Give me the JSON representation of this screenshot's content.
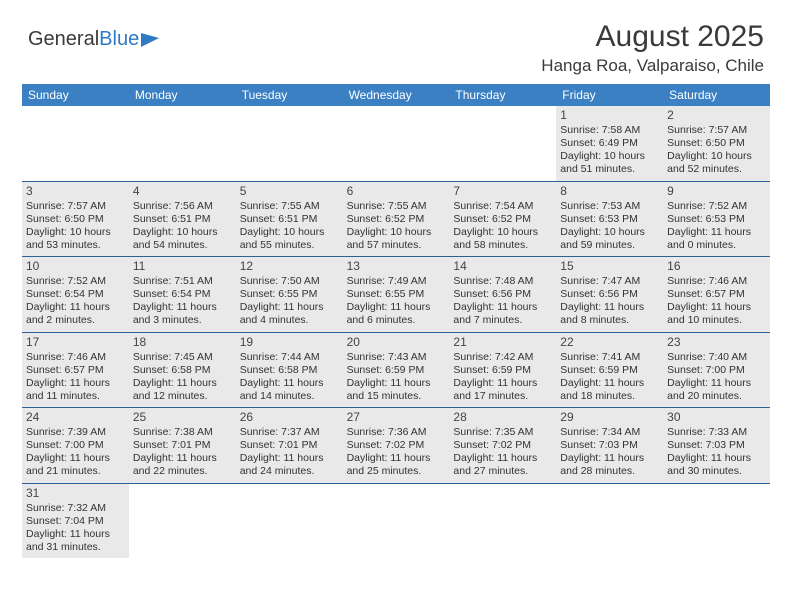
{
  "logo": {
    "text1": "General",
    "text2": "Blue"
  },
  "title": {
    "month": "August 2025",
    "location": "Hanga Roa, Valparaiso, Chile"
  },
  "dayHeaders": [
    "Sunday",
    "Monday",
    "Tuesday",
    "Wednesday",
    "Thursday",
    "Friday",
    "Saturday"
  ],
  "colors": {
    "header_bg": "#3a80c3",
    "border": "#2f5f99",
    "shaded": "#e9e9e9",
    "text": "#333333",
    "logo_blue": "#2f7ac4"
  },
  "weeks": [
    [
      null,
      null,
      null,
      null,
      null,
      {
        "d": "1",
        "sr": "Sunrise: 7:58 AM",
        "ss": "Sunset: 6:49 PM",
        "dl1": "Daylight: 10 hours",
        "dl2": "and 51 minutes."
      },
      {
        "d": "2",
        "sr": "Sunrise: 7:57 AM",
        "ss": "Sunset: 6:50 PM",
        "dl1": "Daylight: 10 hours",
        "dl2": "and 52 minutes."
      }
    ],
    [
      {
        "d": "3",
        "sr": "Sunrise: 7:57 AM",
        "ss": "Sunset: 6:50 PM",
        "dl1": "Daylight: 10 hours",
        "dl2": "and 53 minutes."
      },
      {
        "d": "4",
        "sr": "Sunrise: 7:56 AM",
        "ss": "Sunset: 6:51 PM",
        "dl1": "Daylight: 10 hours",
        "dl2": "and 54 minutes."
      },
      {
        "d": "5",
        "sr": "Sunrise: 7:55 AM",
        "ss": "Sunset: 6:51 PM",
        "dl1": "Daylight: 10 hours",
        "dl2": "and 55 minutes."
      },
      {
        "d": "6",
        "sr": "Sunrise: 7:55 AM",
        "ss": "Sunset: 6:52 PM",
        "dl1": "Daylight: 10 hours",
        "dl2": "and 57 minutes."
      },
      {
        "d": "7",
        "sr": "Sunrise: 7:54 AM",
        "ss": "Sunset: 6:52 PM",
        "dl1": "Daylight: 10 hours",
        "dl2": "and 58 minutes."
      },
      {
        "d": "8",
        "sr": "Sunrise: 7:53 AM",
        "ss": "Sunset: 6:53 PM",
        "dl1": "Daylight: 10 hours",
        "dl2": "and 59 minutes."
      },
      {
        "d": "9",
        "sr": "Sunrise: 7:52 AM",
        "ss": "Sunset: 6:53 PM",
        "dl1": "Daylight: 11 hours",
        "dl2": "and 0 minutes."
      }
    ],
    [
      {
        "d": "10",
        "sr": "Sunrise: 7:52 AM",
        "ss": "Sunset: 6:54 PM",
        "dl1": "Daylight: 11 hours",
        "dl2": "and 2 minutes."
      },
      {
        "d": "11",
        "sr": "Sunrise: 7:51 AM",
        "ss": "Sunset: 6:54 PM",
        "dl1": "Daylight: 11 hours",
        "dl2": "and 3 minutes."
      },
      {
        "d": "12",
        "sr": "Sunrise: 7:50 AM",
        "ss": "Sunset: 6:55 PM",
        "dl1": "Daylight: 11 hours",
        "dl2": "and 4 minutes."
      },
      {
        "d": "13",
        "sr": "Sunrise: 7:49 AM",
        "ss": "Sunset: 6:55 PM",
        "dl1": "Daylight: 11 hours",
        "dl2": "and 6 minutes."
      },
      {
        "d": "14",
        "sr": "Sunrise: 7:48 AM",
        "ss": "Sunset: 6:56 PM",
        "dl1": "Daylight: 11 hours",
        "dl2": "and 7 minutes."
      },
      {
        "d": "15",
        "sr": "Sunrise: 7:47 AM",
        "ss": "Sunset: 6:56 PM",
        "dl1": "Daylight: 11 hours",
        "dl2": "and 8 minutes."
      },
      {
        "d": "16",
        "sr": "Sunrise: 7:46 AM",
        "ss": "Sunset: 6:57 PM",
        "dl1": "Daylight: 11 hours",
        "dl2": "and 10 minutes."
      }
    ],
    [
      {
        "d": "17",
        "sr": "Sunrise: 7:46 AM",
        "ss": "Sunset: 6:57 PM",
        "dl1": "Daylight: 11 hours",
        "dl2": "and 11 minutes."
      },
      {
        "d": "18",
        "sr": "Sunrise: 7:45 AM",
        "ss": "Sunset: 6:58 PM",
        "dl1": "Daylight: 11 hours",
        "dl2": "and 12 minutes."
      },
      {
        "d": "19",
        "sr": "Sunrise: 7:44 AM",
        "ss": "Sunset: 6:58 PM",
        "dl1": "Daylight: 11 hours",
        "dl2": "and 14 minutes."
      },
      {
        "d": "20",
        "sr": "Sunrise: 7:43 AM",
        "ss": "Sunset: 6:59 PM",
        "dl1": "Daylight: 11 hours",
        "dl2": "and 15 minutes."
      },
      {
        "d": "21",
        "sr": "Sunrise: 7:42 AM",
        "ss": "Sunset: 6:59 PM",
        "dl1": "Daylight: 11 hours",
        "dl2": "and 17 minutes."
      },
      {
        "d": "22",
        "sr": "Sunrise: 7:41 AM",
        "ss": "Sunset: 6:59 PM",
        "dl1": "Daylight: 11 hours",
        "dl2": "and 18 minutes."
      },
      {
        "d": "23",
        "sr": "Sunrise: 7:40 AM",
        "ss": "Sunset: 7:00 PM",
        "dl1": "Daylight: 11 hours",
        "dl2": "and 20 minutes."
      }
    ],
    [
      {
        "d": "24",
        "sr": "Sunrise: 7:39 AM",
        "ss": "Sunset: 7:00 PM",
        "dl1": "Daylight: 11 hours",
        "dl2": "and 21 minutes."
      },
      {
        "d": "25",
        "sr": "Sunrise: 7:38 AM",
        "ss": "Sunset: 7:01 PM",
        "dl1": "Daylight: 11 hours",
        "dl2": "and 22 minutes."
      },
      {
        "d": "26",
        "sr": "Sunrise: 7:37 AM",
        "ss": "Sunset: 7:01 PM",
        "dl1": "Daylight: 11 hours",
        "dl2": "and 24 minutes."
      },
      {
        "d": "27",
        "sr": "Sunrise: 7:36 AM",
        "ss": "Sunset: 7:02 PM",
        "dl1": "Daylight: 11 hours",
        "dl2": "and 25 minutes."
      },
      {
        "d": "28",
        "sr": "Sunrise: 7:35 AM",
        "ss": "Sunset: 7:02 PM",
        "dl1": "Daylight: 11 hours",
        "dl2": "and 27 minutes."
      },
      {
        "d": "29",
        "sr": "Sunrise: 7:34 AM",
        "ss": "Sunset: 7:03 PM",
        "dl1": "Daylight: 11 hours",
        "dl2": "and 28 minutes."
      },
      {
        "d": "30",
        "sr": "Sunrise: 7:33 AM",
        "ss": "Sunset: 7:03 PM",
        "dl1": "Daylight: 11 hours",
        "dl2": "and 30 minutes."
      }
    ],
    [
      {
        "d": "31",
        "sr": "Sunrise: 7:32 AM",
        "ss": "Sunset: 7:04 PM",
        "dl1": "Daylight: 11 hours",
        "dl2": "and 31 minutes."
      },
      null,
      null,
      null,
      null,
      null,
      null
    ]
  ]
}
